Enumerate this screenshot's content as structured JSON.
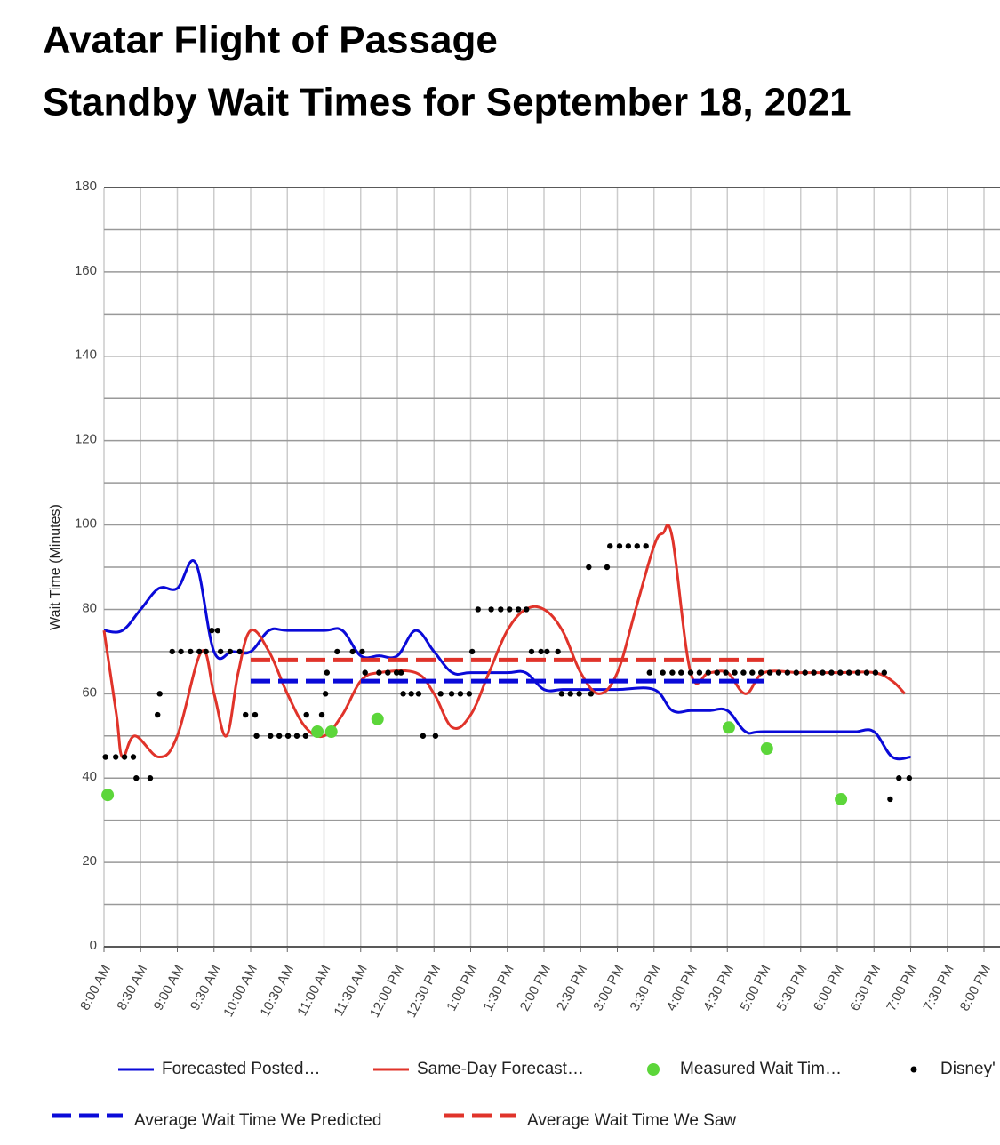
{
  "chart_data": {
    "type": "line",
    "title": "Avatar Flight of Passage",
    "subtitle": "Standby Wait Times for September 18, 2021",
    "y_label": "Wait Time (Minutes)",
    "xlim": [
      8,
      20
    ],
    "ylim": [
      0,
      180
    ],
    "yticks": [
      0,
      20,
      40,
      60,
      80,
      100,
      120,
      140,
      160,
      180
    ],
    "y_minor_ticks": [
      10,
      30,
      50,
      70,
      90,
      110,
      130,
      150,
      170
    ],
    "xticks": [
      {
        "value": 8,
        "label": "8:00 AM"
      },
      {
        "value": 8.5,
        "label": "8:30 AM"
      },
      {
        "value": 9,
        "label": "9:00 AM"
      },
      {
        "value": 9.5,
        "label": "9:30 AM"
      },
      {
        "value": 10,
        "label": "10:00 AM"
      },
      {
        "value": 10.5,
        "label": "10:30 AM"
      },
      {
        "value": 11,
        "label": "11:00 AM"
      },
      {
        "value": 11.5,
        "label": "11:30 AM"
      },
      {
        "value": 12,
        "label": "12:00 PM"
      },
      {
        "value": 12.5,
        "label": "12:30 PM"
      },
      {
        "value": 13,
        "label": "1:00 PM"
      },
      {
        "value": 13.5,
        "label": "1:30 PM"
      },
      {
        "value": 14,
        "label": "2:00 PM"
      },
      {
        "value": 14.5,
        "label": "2:30 PM"
      },
      {
        "value": 15,
        "label": "3:00 PM"
      },
      {
        "value": 15.5,
        "label": "3:30 PM"
      },
      {
        "value": 16,
        "label": "4:00 PM"
      },
      {
        "value": 16.5,
        "label": "4:30 PM"
      },
      {
        "value": 17,
        "label": "5:00 PM"
      },
      {
        "value": 17.5,
        "label": "5:30 PM"
      },
      {
        "value": 18,
        "label": "6:00 PM"
      },
      {
        "value": 18.5,
        "label": "6:30 PM"
      },
      {
        "value": 19,
        "label": "7:00 PM"
      },
      {
        "value": 19.5,
        "label": "7:30 PM"
      },
      {
        "value": 20,
        "label": "8:00 PM"
      }
    ],
    "grid": true,
    "series": [
      {
        "name": "Forecasted Posted…",
        "color": "#0a0ad8",
        "style": "line",
        "x": [
          8,
          8.25,
          8.5,
          8.75,
          9,
          9.25,
          9.5,
          9.75,
          10,
          10.25,
          10.5,
          11,
          11.25,
          11.5,
          11.75,
          12,
          12.25,
          12.5,
          12.75,
          13,
          13.5,
          13.75,
          14,
          14.25,
          14.5,
          15,
          15.5,
          15.75,
          16,
          16.25,
          16.5,
          16.75,
          17,
          18,
          18.25,
          18.5,
          18.75,
          19
        ],
        "values": [
          75,
          75,
          80,
          85,
          85,
          91,
          70,
          70,
          70,
          75,
          75,
          75,
          75,
          69,
          69,
          69,
          75,
          70,
          65,
          65,
          65,
          65,
          61,
          61,
          61,
          61,
          61,
          56,
          56,
          56,
          56,
          51,
          51,
          51,
          51,
          51,
          45,
          45
        ]
      },
      {
        "name": "Same-Day Forecast…",
        "color": "#e0332a",
        "style": "line",
        "x": [
          8,
          8.17,
          8.25,
          8.42,
          8.75,
          9,
          9.33,
          9.5,
          9.67,
          9.83,
          10,
          10.25,
          10.5,
          10.75,
          11,
          11.25,
          11.5,
          11.75,
          12.25,
          12.5,
          12.75,
          13,
          13.25,
          13.5,
          13.75,
          14,
          14.25,
          14.5,
          14.75,
          15,
          15.25,
          15.5,
          15.62,
          15.75,
          16,
          16.25,
          16.5,
          16.75,
          17,
          17.5,
          18,
          18.5,
          18.75,
          18.92
        ],
        "values": [
          75,
          55,
          45,
          50,
          45,
          50,
          70,
          60,
          50,
          65,
          75,
          70,
          60,
          52,
          50,
          55,
          63,
          65,
          65,
          60,
          52,
          55,
          65,
          75,
          80,
          80,
          75,
          65,
          60,
          65,
          80,
          95,
          98,
          97,
          65,
          65,
          65,
          60,
          65,
          65,
          65,
          65,
          63,
          60
        ]
      },
      {
        "name": "Measured Wait Tim…",
        "color": "#5cd63a",
        "style": "dots",
        "x": [
          8.05,
          10.91,
          11.1,
          11.73,
          16.52,
          17.04,
          18.05
        ],
        "values": [
          36,
          51,
          51,
          54,
          52,
          47,
          35
        ]
      },
      {
        "name": "Disney'",
        "color": "#000000",
        "style": "small-dots",
        "x": [
          8.02,
          8.16,
          8.28,
          8.4,
          8.44,
          8.63,
          8.73,
          8.76,
          8.93,
          9.05,
          9.18,
          9.3,
          9.39,
          9.47,
          9.55,
          9.59,
          9.72,
          9.85,
          9.93,
          10.06,
          10.08,
          10.27,
          10.39,
          10.51,
          10.63,
          10.75,
          10.76,
          10.97,
          11.02,
          11.04,
          11.18,
          11.39,
          11.52,
          11.56,
          11.75,
          11.87,
          11.99,
          12.05,
          12.08,
          12.19,
          12.29,
          12.35,
          12.52,
          12.59,
          12.74,
          12.86,
          12.98,
          13.02,
          13.1,
          13.28,
          13.41,
          13.53,
          13.65,
          13.76,
          13.83,
          13.96,
          14.04,
          14.19,
          14.24,
          14.36,
          14.48,
          14.64,
          14.61,
          14.86,
          14.9,
          15.03,
          15.15,
          15.27,
          15.39,
          15.44,
          15.62,
          15.75,
          15.87,
          16,
          16.12,
          16.24,
          16.36,
          16.48,
          16.6,
          16.72,
          16.84,
          16.96,
          17.08,
          17.2,
          17.32,
          17.44,
          17.56,
          17.68,
          17.8,
          17.92,
          18.04,
          18.16,
          18.28,
          18.4,
          18.52,
          18.64,
          18.72,
          18.84,
          18.98
        ],
        "values": [
          45,
          45,
          45,
          45,
          40,
          40,
          55,
          60,
          70,
          70,
          70,
          70,
          70,
          75,
          75,
          70,
          70,
          70,
          55,
          55,
          50,
          50,
          50,
          50,
          50,
          50,
          55,
          55,
          60,
          65,
          70,
          70,
          70,
          65,
          65,
          65,
          65,
          65,
          60,
          60,
          60,
          50,
          50,
          60,
          60,
          60,
          60,
          70,
          80,
          80,
          80,
          80,
          80,
          80,
          70,
          70,
          70,
          70,
          60,
          60,
          60,
          60,
          90,
          90,
          95,
          95,
          95,
          95,
          95,
          65,
          65,
          65,
          65,
          65,
          65,
          65,
          65,
          65,
          65,
          65,
          65,
          65,
          65,
          65,
          65,
          65,
          65,
          65,
          65,
          65,
          65,
          65,
          65,
          65,
          65,
          65,
          35,
          40,
          40
        ]
      },
      {
        "name": "Average Wait Time We Predicted",
        "color": "#0a0ad8",
        "style": "dashed",
        "x": [
          10,
          17
        ],
        "values": [
          63,
          63
        ]
      },
      {
        "name": "Average Wait Time We Saw",
        "color": "#e0332a",
        "style": "dashed",
        "x": [
          10,
          17
        ],
        "values": [
          68,
          68
        ]
      }
    ]
  }
}
